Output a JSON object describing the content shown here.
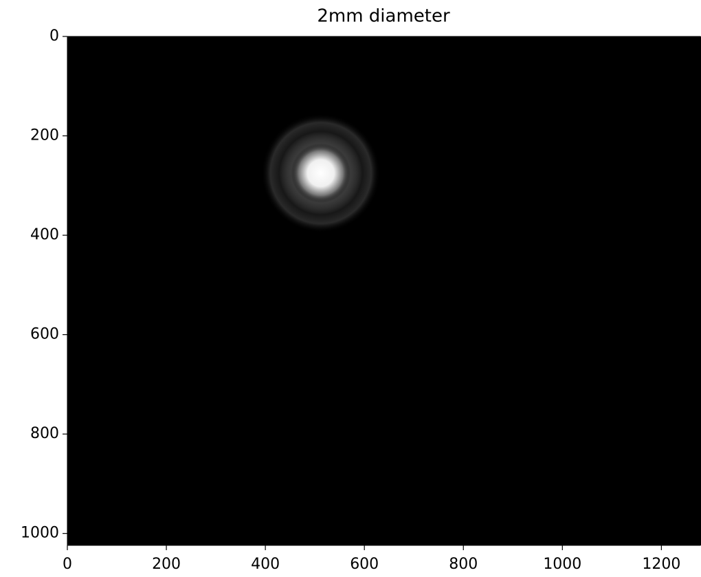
{
  "chart_data": {
    "type": "image",
    "title": "2mm diameter",
    "xlim": [
      0,
      1280
    ],
    "ylim": [
      1024,
      0
    ],
    "xticks": [
      0,
      200,
      400,
      600,
      800,
      1000,
      1200
    ],
    "yticks": [
      0,
      200,
      400,
      600,
      800,
      1000
    ],
    "background": "#000000",
    "spots": [
      {
        "x": 512,
        "y": 275,
        "radius": 60
      }
    ]
  }
}
